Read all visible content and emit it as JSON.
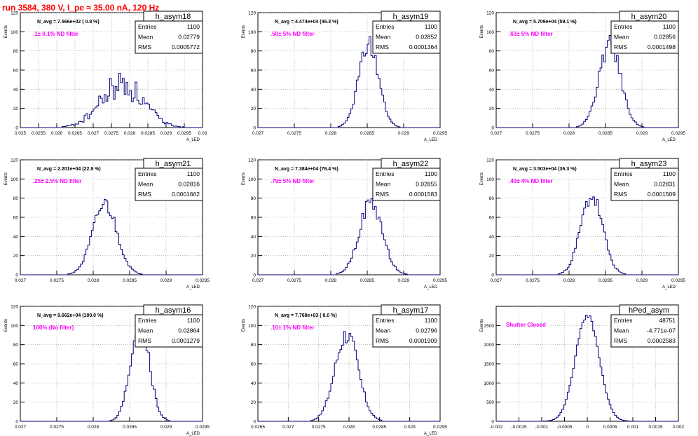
{
  "page": {
    "title": "run 3584,   380 V, I_pe ≈ 35.00 nA, 120 Hz"
  },
  "style": {
    "histogram_color": "#00007a",
    "annotation_color": "#ff00ff",
    "title_color": "#ff0000",
    "grid": "dotted"
  },
  "chart_data": [
    {
      "type": "histogram",
      "name": "h_asym18",
      "stats": {
        "entries": "1100",
        "mean": "0.02779",
        "rms": "0.0005772"
      },
      "navg": "N_avg = 7.566e+02 ( 0.8 %)",
      "annotation": ".1± 0.1% ND filter",
      "ylabel": "Events",
      "xlabel": "A_LED",
      "xlim": [
        0.025,
        0.03
      ],
      "ylim": [
        0,
        120
      ],
      "xticks": [
        "0.025",
        "0.0255",
        "0.026",
        "0.0265",
        "0.027",
        "0.0275",
        "0.028",
        "0.0285",
        "0.029",
        "0.0295",
        "0.03"
      ],
      "yticks": [
        "0",
        "20",
        "40",
        "60",
        "80",
        "100",
        "120"
      ],
      "mean": 0.02779,
      "sigma": 0.0005772,
      "peak": 45,
      "noise": 0.35,
      "seed": 18
    },
    {
      "type": "histogram",
      "name": "h_asym19",
      "stats": {
        "entries": "1100",
        "mean": "0.02852",
        "rms": "0.0001364"
      },
      "navg": "N_avg = 4.474e+04 (46.3 %)",
      "annotation": ".50± 5% ND filter",
      "ylabel": "Events",
      "xlabel": "A_LED",
      "xlim": [
        0.027,
        0.0295
      ],
      "ylim": [
        0,
        120
      ],
      "xticks": [
        "0.027",
        "0.0275",
        "0.028",
        "0.0285",
        "0.029",
        "0.0295"
      ],
      "yticks": [
        "0",
        "20",
        "40",
        "60",
        "80",
        "100",
        "120"
      ],
      "mean": 0.02852,
      "sigma": 0.0001364,
      "peak": 87,
      "noise": 0.12,
      "seed": 19
    },
    {
      "type": "histogram",
      "name": "h_asym20",
      "stats": {
        "entries": "1100",
        "mean": "0.02856",
        "rms": "0.0001498"
      },
      "navg": "N_avg = 5.709e+04 (59.1 %)",
      "annotation": ".63± 5% ND filter",
      "ylabel": "Events",
      "xlabel": "A_LED",
      "xlim": [
        0.027,
        0.0295
      ],
      "ylim": [
        0,
        120
      ],
      "xticks": [
        "0.027",
        "0.0275",
        "0.028",
        "0.0285",
        "0.029",
        "0.0295"
      ],
      "yticks": [
        "0",
        "20",
        "40",
        "60",
        "80",
        "100",
        "120"
      ],
      "mean": 0.02856,
      "sigma": 0.0001498,
      "peak": 86,
      "noise": 0.12,
      "seed": 20
    },
    {
      "type": "histogram",
      "name": "h_asym21",
      "stats": {
        "entries": "1100",
        "mean": "0.02816",
        "rms": "0.0001662"
      },
      "navg": "N_avg = 2.201e+04 (22.8 %)",
      "annotation": ".25± 2.5% ND filter",
      "ylabel": "Events",
      "xlabel": "A_LED",
      "xlim": [
        0.027,
        0.0295
      ],
      "ylim": [
        0,
        120
      ],
      "xticks": [
        "0.027",
        "0.0275",
        "0.028",
        "0.0285",
        "0.029",
        "0.0295"
      ],
      "yticks": [
        "0",
        "20",
        "40",
        "60",
        "80",
        "100",
        "120"
      ],
      "mean": 0.02816,
      "sigma": 0.0001662,
      "peak": 74,
      "noise": 0.12,
      "seed": 21
    },
    {
      "type": "histogram",
      "name": "h_asym22",
      "stats": {
        "entries": "1100",
        "mean": "0.02855",
        "rms": "0.0001583"
      },
      "navg": "N_avg = 7.384e+04 (76.4 %)",
      "annotation": ".79± 5% ND filter",
      "ylabel": "Events",
      "xlabel": "A_LED",
      "xlim": [
        0.027,
        0.0295
      ],
      "ylim": [
        0,
        120
      ],
      "xticks": [
        "0.027",
        "0.0275",
        "0.028",
        "0.0285",
        "0.029",
        "0.0295"
      ],
      "yticks": [
        "0",
        "20",
        "40",
        "60",
        "80",
        "100",
        "120"
      ],
      "mean": 0.02855,
      "sigma": 0.0001583,
      "peak": 75,
      "noise": 0.12,
      "seed": 22
    },
    {
      "type": "histogram",
      "name": "h_asym23",
      "stats": {
        "entries": "1100",
        "mean": "0.02831",
        "rms": "0.0001509"
      },
      "navg": "N_avg = 3.503e+04 (36.3 %)",
      "annotation": ".40± 4% ND filter",
      "ylabel": "Events",
      "xlabel": "A_LED",
      "xlim": [
        0.027,
        0.0295
      ],
      "ylim": [
        0,
        120
      ],
      "xticks": [
        "0.027",
        "0.0275",
        "0.028",
        "0.0285",
        "0.029",
        "0.0295"
      ],
      "yticks": [
        "0",
        "20",
        "40",
        "60",
        "80",
        "100",
        "120"
      ],
      "mean": 0.02831,
      "sigma": 0.0001509,
      "peak": 82,
      "noise": 0.12,
      "seed": 23
    },
    {
      "type": "histogram",
      "name": "h_asym16",
      "stats": {
        "entries": "1100",
        "mean": "0.02864",
        "rms": "0.0001279"
      },
      "navg": "N_avg = 9.662e+04 (100.0 %)",
      "annotation": "100% (No filter)",
      "ylabel": "Events",
      "xlabel": "A_LED",
      "xlim": [
        0.027,
        0.0295
      ],
      "ylim": [
        0,
        120
      ],
      "xticks": [
        "0.027",
        "0.0275",
        "0.028",
        "0.0285",
        "0.029",
        "0.0295"
      ],
      "yticks": [
        "0",
        "20",
        "40",
        "60",
        "80",
        "100",
        "120"
      ],
      "mean": 0.02864,
      "sigma": 0.0001279,
      "peak": 102,
      "noise": 0.12,
      "seed": 16
    },
    {
      "type": "histogram",
      "name": "h_asym17",
      "stats": {
        "entries": "1100",
        "mean": "0.02796",
        "rms": "0.0001909"
      },
      "navg": "N_avg = 7.768e+03 ( 8.0 %)",
      "annotation": ".10± 1% ND filter",
      "ylabel": "Events",
      "xlabel": "A_LED",
      "xlim": [
        0.0265,
        0.0295
      ],
      "ylim": [
        0,
        120
      ],
      "xticks": [
        "0.0265",
        "0.027",
        "0.0275",
        "0.028",
        "0.0285",
        "0.029",
        "0.0295"
      ],
      "yticks": [
        "0",
        "20",
        "40",
        "60",
        "80",
        "100",
        "120"
      ],
      "mean": 0.02796,
      "sigma": 0.0001909,
      "peak": 91,
      "noise": 0.12,
      "seed": 17
    },
    {
      "type": "histogram",
      "name": "hPed_asym",
      "stats": {
        "entries": "48751",
        "mean": "-4.771e-07",
        "rms": "0.0002583"
      },
      "navg": "",
      "annotation": "Shutter Closed",
      "ylabel": "Events",
      "xlabel": "",
      "xlim": [
        -0.002,
        0.002
      ],
      "ylim": [
        0,
        3000
      ],
      "xticks": [
        "-0.002",
        "-0.0015",
        "-0.001",
        "-0.0005",
        "0",
        "0.0005",
        "0.001",
        "0.0015",
        "0.002"
      ],
      "yticks": [
        "0",
        "500",
        "1000",
        "1500",
        "2000",
        "2500"
      ],
      "mean": 0.0,
      "sigma": 0.0002583,
      "peak": 2790,
      "noise": 0.03,
      "seed": 99
    }
  ]
}
